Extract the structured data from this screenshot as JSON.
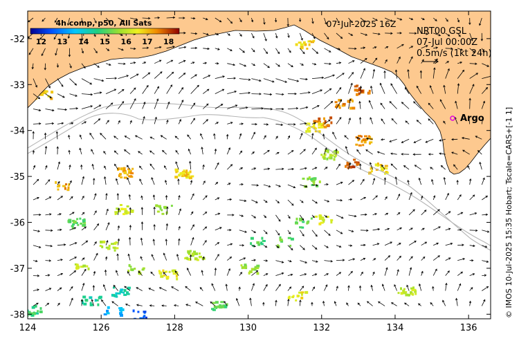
{
  "chart_data": {
    "type": "map",
    "title": "4h comp, p50, All Sats",
    "date_label": "07-Jul-2025 16Z",
    "product": "NRT00 GSL",
    "product_time": "07-Jul 00:00Z",
    "scale_label": "0.5m/s (1kt 24h)",
    "float_label": "Argo",
    "credit": "© IMOS 10-Jul-2025 15:35 Hobart; Tscale=CARS+[-1 1]",
    "xlim": [
      124,
      136.6
    ],
    "ylim": [
      -38.1,
      -31.4
    ],
    "x_ticks": [
      "124",
      "126",
      "128",
      "130",
      "132",
      "134",
      "136"
    ],
    "y_ticks": [
      "-32",
      "-33",
      "-34",
      "-35",
      "-36",
      "-37",
      "-38"
    ],
    "colorbar": {
      "min": 11.5,
      "max": 18.5,
      "tick_labels": [
        "12",
        "13",
        "14",
        "15",
        "16",
        "17",
        "18"
      ]
    },
    "argo_position": {
      "lon": 135.7,
      "lat": -33.6
    },
    "sst_patches": [
      {
        "lon": 124.4,
        "lat": -33.2,
        "temp": 17.0
      },
      {
        "lon": 124.9,
        "lat": -35.2,
        "temp": 17.3
      },
      {
        "lon": 126.6,
        "lat": -35.7,
        "temp": 16.2
      },
      {
        "lon": 127.7,
        "lat": -35.7,
        "temp": 15.5
      },
      {
        "lon": 125.3,
        "lat": -36.0,
        "temp": 15.2
      },
      {
        "lon": 126.2,
        "lat": -36.5,
        "temp": 16.0
      },
      {
        "lon": 125.4,
        "lat": -36.9,
        "temp": 16.1
      },
      {
        "lon": 126.9,
        "lat": -37.0,
        "temp": 15.8
      },
      {
        "lon": 127.8,
        "lat": -37.1,
        "temp": 16.4
      },
      {
        "lon": 126.5,
        "lat": -37.5,
        "temp": 14.2
      },
      {
        "lon": 125.7,
        "lat": -37.7,
        "temp": 14.5
      },
      {
        "lon": 126.3,
        "lat": -37.9,
        "temp": 13.5
      },
      {
        "lon": 127.0,
        "lat": -38.0,
        "temp": 12.4
      },
      {
        "lon": 124.1,
        "lat": -37.9,
        "temp": 14.8
      },
      {
        "lon": 130.2,
        "lat": -36.4,
        "temp": 15.0
      },
      {
        "lon": 131.0,
        "lat": -36.4,
        "temp": 15.2
      },
      {
        "lon": 131.5,
        "lat": -36.0,
        "temp": 15.1
      },
      {
        "lon": 132.0,
        "lat": -35.9,
        "temp": 16.3
      },
      {
        "lon": 131.7,
        "lat": -35.1,
        "temp": 15.4
      },
      {
        "lon": 132.2,
        "lat": -34.5,
        "temp": 15.8
      },
      {
        "lon": 132.0,
        "lat": -33.8,
        "temp": 17.6
      },
      {
        "lon": 132.6,
        "lat": -33.4,
        "temp": 17.4
      },
      {
        "lon": 133.1,
        "lat": -33.1,
        "temp": 17.8
      },
      {
        "lon": 133.1,
        "lat": -34.2,
        "temp": 17.3
      },
      {
        "lon": 132.8,
        "lat": -34.7,
        "temp": 17.8
      },
      {
        "lon": 133.5,
        "lat": -34.8,
        "temp": 16.8
      },
      {
        "lon": 131.5,
        "lat": -32.1,
        "temp": 16.8
      },
      {
        "lon": 131.8,
        "lat": -33.9,
        "temp": 16.5
      },
      {
        "lon": 130.0,
        "lat": -37.0,
        "temp": 15.6
      },
      {
        "lon": 129.2,
        "lat": -37.8,
        "temp": 15.1
      },
      {
        "lon": 128.5,
        "lat": -36.7,
        "temp": 16.0
      },
      {
        "lon": 126.6,
        "lat": -34.9,
        "temp": 17.2
      },
      {
        "lon": 128.2,
        "lat": -34.9,
        "temp": 16.8
      },
      {
        "lon": 134.3,
        "lat": -37.5,
        "temp": 16.0
      },
      {
        "lon": 131.3,
        "lat": -37.6,
        "temp": 16.5
      }
    ]
  },
  "colors": {
    "land": "#fdc98f",
    "contour": "#b0b0b0",
    "argo": "#e000e0"
  },
  "icons": {
    "argo_marker": "argo-float-icon",
    "current_arrows": "current-vector-icon"
  }
}
